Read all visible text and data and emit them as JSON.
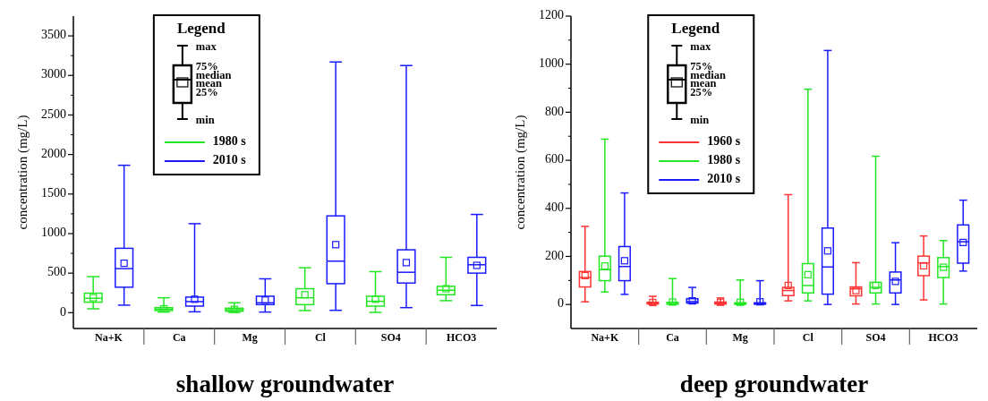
{
  "chart_data": [
    {
      "type": "box",
      "title": "shallow groundwater",
      "ylabel": "concentration (mg/L)",
      "categories": [
        "Na+K",
        "Ca",
        "Mg",
        "Cl",
        "SO4",
        "HCO3"
      ],
      "ylim": [
        -200,
        3750
      ],
      "yticks": [
        0,
        500,
        1000,
        1500,
        2000,
        2500,
        3000,
        3500
      ],
      "legend": "top left",
      "legend_title": "Legend",
      "marker": "square",
      "annotations": [
        "max",
        "75%",
        "median",
        "mean",
        "25%",
        "min"
      ],
      "series": [
        {
          "name": "1980 s",
          "color": "#22e622",
          "boxes": [
            {
              "low": 49,
              "q1": 133,
              "median": 182,
              "q3": 246,
              "high": 455,
              "mean": 190
            },
            {
              "low": 8,
              "q1": 27,
              "median": 45,
              "q3": 64,
              "high": 189,
              "mean": 49
            },
            {
              "low": 4,
              "q1": 19,
              "median": 38,
              "q3": 57,
              "high": 125,
              "mean": 42
            },
            {
              "low": 27,
              "q1": 102,
              "median": 189,
              "q3": 303,
              "high": 568,
              "mean": 227
            },
            {
              "low": 4,
              "q1": 83,
              "median": 144,
              "q3": 208,
              "high": 519,
              "mean": 170
            },
            {
              "low": 152,
              "q1": 227,
              "median": 284,
              "q3": 333,
              "high": 700,
              "mean": 303
            }
          ]
        },
        {
          "name": "2010 s",
          "color": "#1a1aff",
          "boxes": [
            {
              "low": 95,
              "q1": 322,
              "median": 557,
              "q3": 814,
              "high": 1864,
              "mean": 625
            },
            {
              "low": 11,
              "q1": 83,
              "median": 140,
              "q3": 197,
              "high": 1125,
              "mean": 170
            },
            {
              "low": 8,
              "q1": 102,
              "median": 125,
              "q3": 208,
              "high": 428,
              "mean": 159
            },
            {
              "low": 30,
              "q1": 367,
              "median": 652,
              "q3": 1224,
              "high": 3170,
              "mean": 860
            },
            {
              "low": 64,
              "q1": 375,
              "median": 511,
              "q3": 795,
              "high": 3125,
              "mean": 633
            },
            {
              "low": 91,
              "q1": 500,
              "median": 606,
              "q3": 700,
              "high": 1242,
              "mean": 598
            }
          ]
        }
      ]
    },
    {
      "type": "box",
      "title": "deep groundwater",
      "ylabel": "concentration (mg/L)",
      "categories": [
        "Na+K",
        "Ca",
        "Mg",
        "Cl",
        "SO4",
        "HCO3"
      ],
      "ylim": [
        -100,
        1200
      ],
      "yticks": [
        0,
        200,
        400,
        600,
        800,
        1000,
        1200
      ],
      "legend": "top left",
      "legend_title": "Legend",
      "marker": "square",
      "annotations": [
        "max",
        "75%",
        "median",
        "mean",
        "25%",
        "min"
      ],
      "series": [
        {
          "name": "1960 s",
          "color": "#ff3333",
          "boxes": [
            {
              "low": 11,
              "q1": 73,
              "median": 112,
              "q3": 137,
              "high": 325,
              "mean": 120
            },
            {
              "low": 0,
              "q1": 2,
              "median": 5,
              "q3": 9,
              "high": 34,
              "mean": 8
            },
            {
              "low": 0,
              "q1": 2,
              "median": 6,
              "q3": 10,
              "high": 27,
              "mean": 9
            },
            {
              "low": 15,
              "q1": 37,
              "median": 58,
              "q3": 71,
              "high": 457,
              "mean": 79
            },
            {
              "low": 2,
              "q1": 36,
              "median": 65,
              "q3": 73,
              "high": 174,
              "mean": 58
            },
            {
              "low": 19,
              "q1": 120,
              "median": 172,
              "q3": 201,
              "high": 285,
              "mean": 161
            }
          ]
        },
        {
          "name": "1980 s",
          "color": "#22e622",
          "boxes": [
            {
              "low": 52,
              "q1": 99,
              "median": 145,
              "q3": 201,
              "high": 688,
              "mean": 160
            },
            {
              "low": 0,
              "q1": 1,
              "median": 4,
              "q3": 9,
              "high": 108,
              "mean": 10
            },
            {
              "low": 0,
              "q1": 1,
              "median": 2,
              "q3": 7,
              "high": 102,
              "mean": 9
            },
            {
              "low": 15,
              "q1": 48,
              "median": 79,
              "q3": 170,
              "high": 896,
              "mean": 124
            },
            {
              "low": 2,
              "q1": 48,
              "median": 71,
              "q3": 92,
              "high": 617,
              "mean": 79
            },
            {
              "low": 2,
              "q1": 112,
              "median": 158,
              "q3": 195,
              "high": 266,
              "mean": 155
            }
          ]
        },
        {
          "name": "2010 s",
          "color": "#1a1aff",
          "boxes": [
            {
              "low": 42,
              "q1": 99,
              "median": 158,
              "q3": 241,
              "high": 464,
              "mean": 182
            },
            {
              "low": 4,
              "q1": 6,
              "median": 12,
              "q3": 24,
              "high": 71,
              "mean": 15
            },
            {
              "low": 0,
              "q1": 1,
              "median": 4,
              "q3": 7,
              "high": 99,
              "mean": 11
            },
            {
              "low": 0,
              "q1": 43,
              "median": 156,
              "q3": 318,
              "high": 1057,
              "mean": 223
            },
            {
              "low": 0,
              "q1": 48,
              "median": 102,
              "q3": 135,
              "high": 257,
              "mean": 96
            },
            {
              "low": 139,
              "q1": 172,
              "median": 261,
              "q3": 331,
              "high": 434,
              "mean": 258
            }
          ]
        }
      ]
    }
  ]
}
